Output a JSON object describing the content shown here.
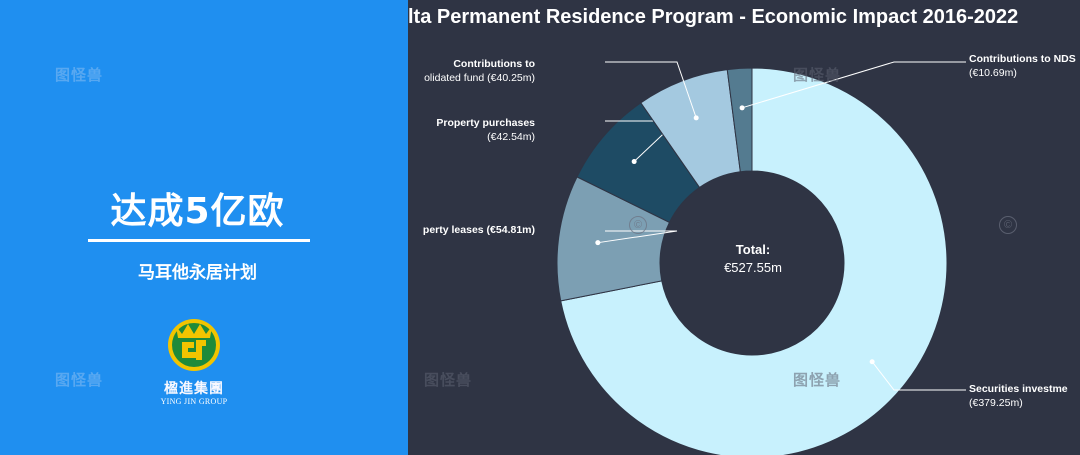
{
  "promo": {
    "headline": "达成5亿欧",
    "subheadline": "马耳他永居计划",
    "logo_cn": "楹進集團",
    "logo_en": "YING JIN GROUP"
  },
  "watermark": {
    "text": "图怪兽",
    "copyright_symbol": "©"
  },
  "chart_data": {
    "type": "pie",
    "title": "lta Permanent Residence Program - Economic Impact 2016-2022",
    "donut": true,
    "center_label": "Total:",
    "center_value": "€527.55m",
    "total": 527.55,
    "slices": [
      {
        "name": "Securities investment",
        "display_name": "Securities investme",
        "value": 379.25,
        "value_label": "(€379.25m)",
        "color": "#c8f1fd"
      },
      {
        "name": "Property leases",
        "display_name": "perty leases (€54.81m)",
        "value": 54.81,
        "value_label": "(€54.81m)",
        "color": "#7c9fb3"
      },
      {
        "name": "Property purchases",
        "display_name": "Property purchases",
        "value": 42.54,
        "value_label": "(€42.54m)",
        "color": "#1e4b64"
      },
      {
        "name": "Contributions to consolidated fund",
        "display_name": "Contributions to",
        "display_line2": "olidated fund (€40.25m)",
        "value": 40.25,
        "value_label": "(€40.25m)",
        "color": "#a4c9e0"
      },
      {
        "name": "Contributions to NDSF",
        "display_name": "Contributions to NDS",
        "value": 10.69,
        "value_label": "(€10.69m)",
        "color": "#547b90"
      }
    ],
    "label_color": "#ffffff",
    "background": "#2f3444"
  }
}
